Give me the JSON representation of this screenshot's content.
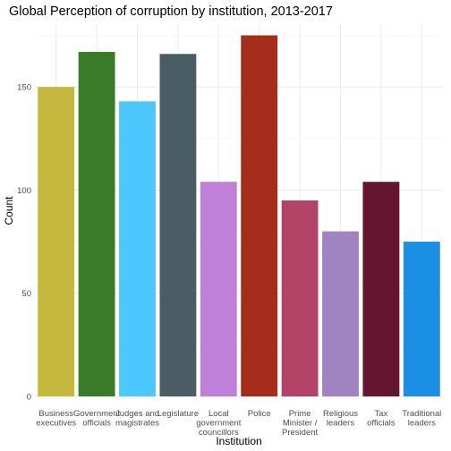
{
  "chart_data": {
    "type": "bar",
    "title": "Global Perception of corruption by institution, 2013-2017",
    "xlabel": "Institution",
    "ylabel": "Count",
    "ylim": [
      0,
      180
    ],
    "yticks": [
      0,
      50,
      100,
      150
    ],
    "grid": true,
    "legend": "none",
    "categories": [
      [
        "Business",
        "executives"
      ],
      [
        "Government",
        "officials"
      ],
      [
        "Judges and",
        "magistrates"
      ],
      [
        "Legislature"
      ],
      [
        "Local",
        "government",
        "councillors"
      ],
      [
        "Police"
      ],
      [
        "Prime",
        "Minister /",
        "President"
      ],
      [
        "Religious",
        "leaders"
      ],
      [
        "Tax",
        "officials"
      ],
      [
        "Traditional",
        "leaders"
      ]
    ],
    "values": [
      150,
      167,
      143,
      166,
      104,
      175,
      95,
      80,
      104,
      75
    ],
    "colors": [
      "#c4b73e",
      "#3a7b2a",
      "#4dc8ff",
      "#4b5d64",
      "#bf80d9",
      "#a42d1b",
      "#b34468",
      "#a083c0",
      "#64152f",
      "#1a8fe3"
    ]
  }
}
